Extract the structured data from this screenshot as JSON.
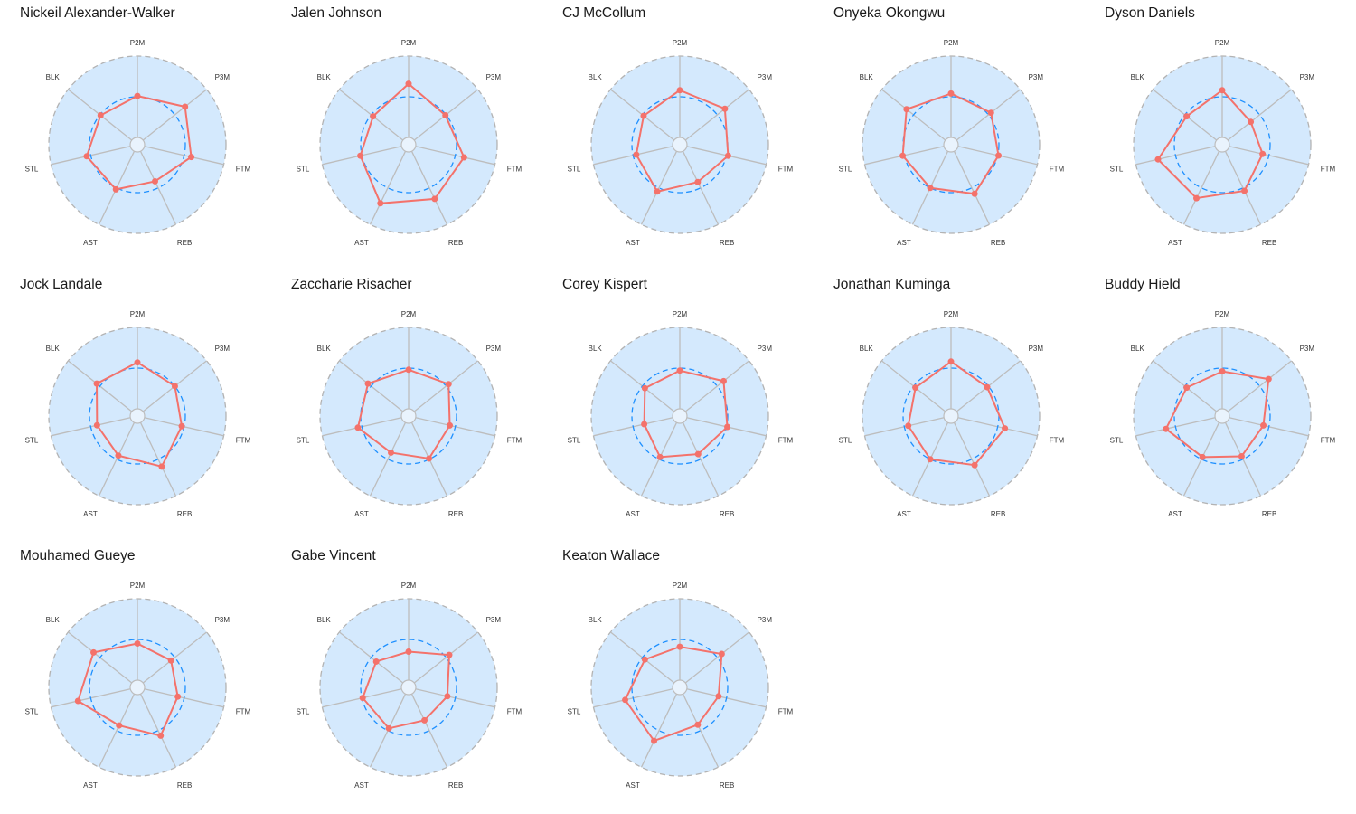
{
  "chart_data": {
    "type": "radar",
    "axes": [
      "P2M",
      "P3M",
      "FTM",
      "REB",
      "AST",
      "STL",
      "BLK"
    ],
    "range": [
      0,
      1
    ],
    "reference_level": 0.5,
    "colors": {
      "background": "#d4e9fd",
      "grid": "#bdbdbd",
      "reference": "#1e90ff",
      "series": "#f4726b"
    },
    "panels": [
      {
        "title": "Nickeil Alexander-Walker",
        "values": [
          0.51,
          0.66,
          0.59,
          0.41,
          0.52,
          0.55,
          0.49
        ]
      },
      {
        "title": "Jalen Johnson",
        "values": [
          0.66,
          0.49,
          0.61,
          0.65,
          0.71,
          0.52,
          0.47
        ]
      },
      {
        "title": "CJ McCollum",
        "values": [
          0.58,
          0.62,
          0.52,
          0.42,
          0.55,
          0.46,
          0.48
        ]
      },
      {
        "title": "Onyeka Okongwu",
        "values": [
          0.54,
          0.54,
          0.51,
          0.58,
          0.5,
          0.52,
          0.61
        ]
      },
      {
        "title": "Dyson Daniels",
        "values": [
          0.58,
          0.36,
          0.42,
          0.54,
          0.64,
          0.72,
          0.47
        ]
      },
      {
        "title": "Jock Landale",
        "values": [
          0.57,
          0.5,
          0.47,
          0.6,
          0.45,
          0.42,
          0.55
        ]
      },
      {
        "title": "Zaccharie Risacher",
        "values": [
          0.48,
          0.54,
          0.43,
          0.49,
          0.41,
          0.55,
          0.55
        ]
      },
      {
        "title": "Corey Kispert",
        "values": [
          0.47,
          0.6,
          0.51,
          0.43,
          0.47,
          0.36,
          0.46
        ]
      },
      {
        "title": "Jonathan Kuminga",
        "values": [
          0.58,
          0.48,
          0.59,
          0.58,
          0.5,
          0.45,
          0.47
        ]
      },
      {
        "title": "Buddy Hield",
        "values": [
          0.46,
          0.64,
          0.43,
          0.46,
          0.47,
          0.62,
          0.47
        ]
      },
      {
        "title": "Mouhamed Gueye",
        "values": [
          0.45,
          0.44,
          0.42,
          0.57,
          0.43,
          0.66,
          0.6
        ]
      },
      {
        "title": "Gabe Vincent",
        "values": [
          0.35,
          0.55,
          0.4,
          0.36,
          0.47,
          0.49,
          0.42
        ]
      },
      {
        "title": "Keaton Wallace",
        "values": [
          0.41,
          0.57,
          0.4,
          0.42,
          0.64,
          0.6,
          0.46
        ]
      }
    ]
  }
}
